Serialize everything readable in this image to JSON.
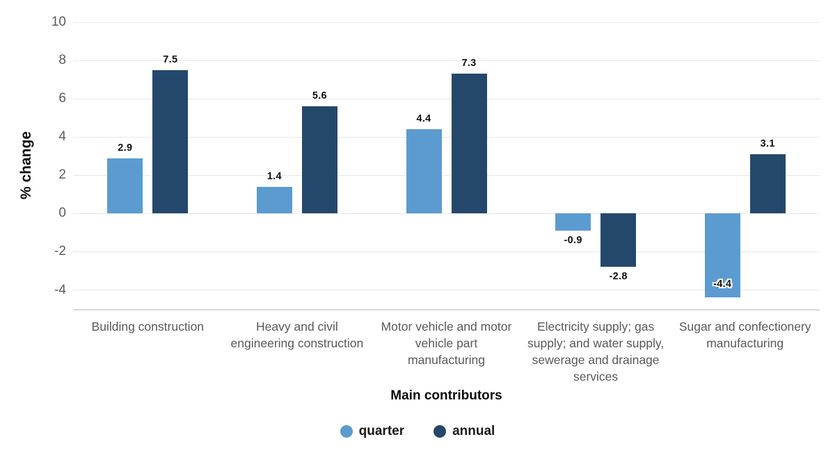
{
  "chart_data": {
    "type": "bar",
    "title": "",
    "xlabel": "Main contributors",
    "ylabel": "% change",
    "categories": [
      "Building construction",
      "Heavy and civil engineering construction",
      "Motor vehicle and motor vehicle part manufacturing",
      "Electricity supply; gas supply; and water supply, sewerage and drainage services",
      "Sugar and confectionery manufacturing"
    ],
    "series": [
      {
        "name": "quarter",
        "color": "#5B9BD0",
        "values": [
          2.9,
          1.4,
          4.4,
          -0.9,
          -4.4
        ]
      },
      {
        "name": "annual",
        "color": "#24486C",
        "values": [
          7.5,
          5.6,
          7.3,
          -2.8,
          3.1
        ]
      }
    ],
    "yticks": [
      10,
      8,
      6,
      4,
      2,
      0,
      -2,
      -4
    ],
    "ylim": [
      -5,
      10
    ],
    "grid": true,
    "legend_position": "bottom",
    "colors": {
      "gridline": "#e7e7e7",
      "baseline": "#d6d9e6",
      "tick_text": "#5b5c5f",
      "category_text": "#58595b",
      "label_text": "#101010"
    }
  }
}
